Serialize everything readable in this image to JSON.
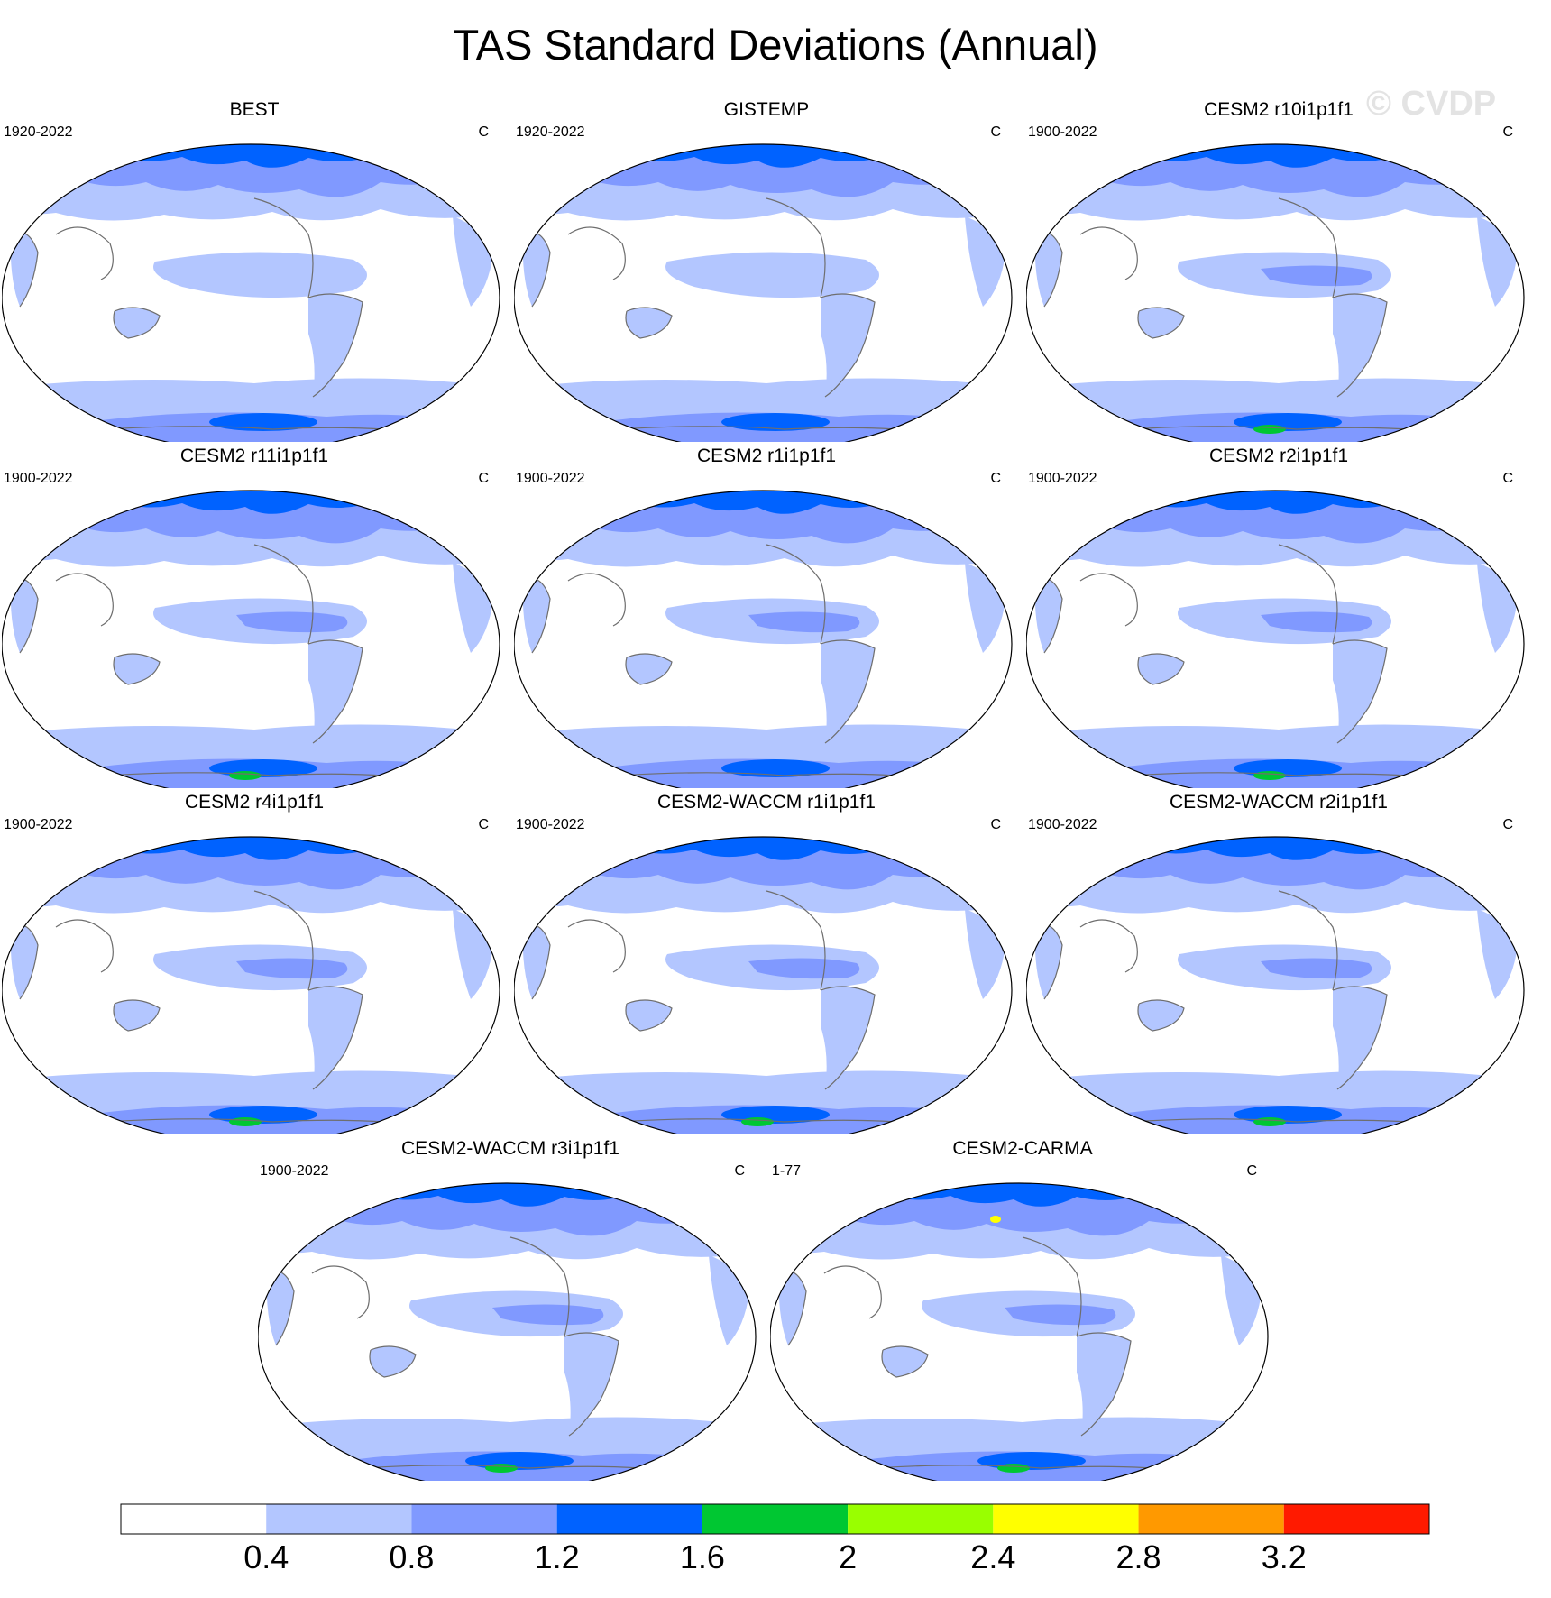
{
  "title": "TAS Standard Deviations (Annual)",
  "watermark": "© CVDP",
  "panels": [
    {
      "name": "BEST",
      "period": "1920-2022",
      "unit": "C"
    },
    {
      "name": "GISTEMP",
      "period": "1920-2022",
      "unit": "C"
    },
    {
      "name": "CESM2 r10i1p1f1",
      "period": "1900-2022",
      "unit": "C"
    },
    {
      "name": "CESM2 r11i1p1f1",
      "period": "1900-2022",
      "unit": "C"
    },
    {
      "name": "CESM2 r1i1p1f1",
      "period": "1900-2022",
      "unit": "C"
    },
    {
      "name": "CESM2 r2i1p1f1",
      "period": "1900-2022",
      "unit": "C"
    },
    {
      "name": "CESM2 r4i1p1f1",
      "period": "1900-2022",
      "unit": "C"
    },
    {
      "name": "CESM2-WACCM r1i1p1f1",
      "period": "1900-2022",
      "unit": "C"
    },
    {
      "name": "CESM2-WACCM r2i1p1f1",
      "period": "1900-2022",
      "unit": "C"
    },
    {
      "name": "CESM2-WACCM r3i1p1f1",
      "period": "1900-2022",
      "unit": "C"
    },
    {
      "name": "CESM2-CARMA",
      "period": "1-77",
      "unit": "C"
    }
  ],
  "chart_data": {
    "type": "heatmap",
    "title": "TAS Standard Deviations (Annual)",
    "unit": "C",
    "projection": "Robinson, Pacific-centered",
    "colorbar": {
      "levels": [
        0.4,
        0.8,
        1.2,
        1.6,
        2,
        2.4,
        2.8,
        3.2
      ],
      "tick_labels": [
        "0.4",
        "0.8",
        "1.2",
        "1.6",
        "2",
        "2.4",
        "2.8",
        "3.2"
      ],
      "colors": [
        "#ffffff",
        "#b3c6ff",
        "#8099ff",
        "#0062ff",
        "#00c732",
        "#99ff00",
        "#ffff00",
        "#ff9900",
        "#ff1a00"
      ]
    },
    "panels": [
      {
        "name": "BEST",
        "period": "1920-2022",
        "max_level_reached": 1.6
      },
      {
        "name": "GISTEMP",
        "period": "1920-2022",
        "max_level_reached": 1.6
      },
      {
        "name": "CESM2 r10i1p1f1",
        "period": "1900-2022",
        "max_level_reached": 2.4
      },
      {
        "name": "CESM2 r11i1p1f1",
        "period": "1900-2022",
        "max_level_reached": 2.4
      },
      {
        "name": "CESM2 r1i1p1f1",
        "period": "1900-2022",
        "max_level_reached": 2.0
      },
      {
        "name": "CESM2 r2i1p1f1",
        "period": "1900-2022",
        "max_level_reached": 2.4
      },
      {
        "name": "CESM2 r4i1p1f1",
        "period": "1900-2022",
        "max_level_reached": 2.4
      },
      {
        "name": "CESM2-WACCM r1i1p1f1",
        "period": "1900-2022",
        "max_level_reached": 2.4
      },
      {
        "name": "CESM2-WACCM r2i1p1f1",
        "period": "1900-2022",
        "max_level_reached": 2.4
      },
      {
        "name": "CESM2-WACCM r3i1p1f1",
        "period": "1900-2022",
        "max_level_reached": 2.4
      },
      {
        "name": "CESM2-CARMA",
        "period": "1-77",
        "max_level_reached": 2.8
      }
    ]
  }
}
